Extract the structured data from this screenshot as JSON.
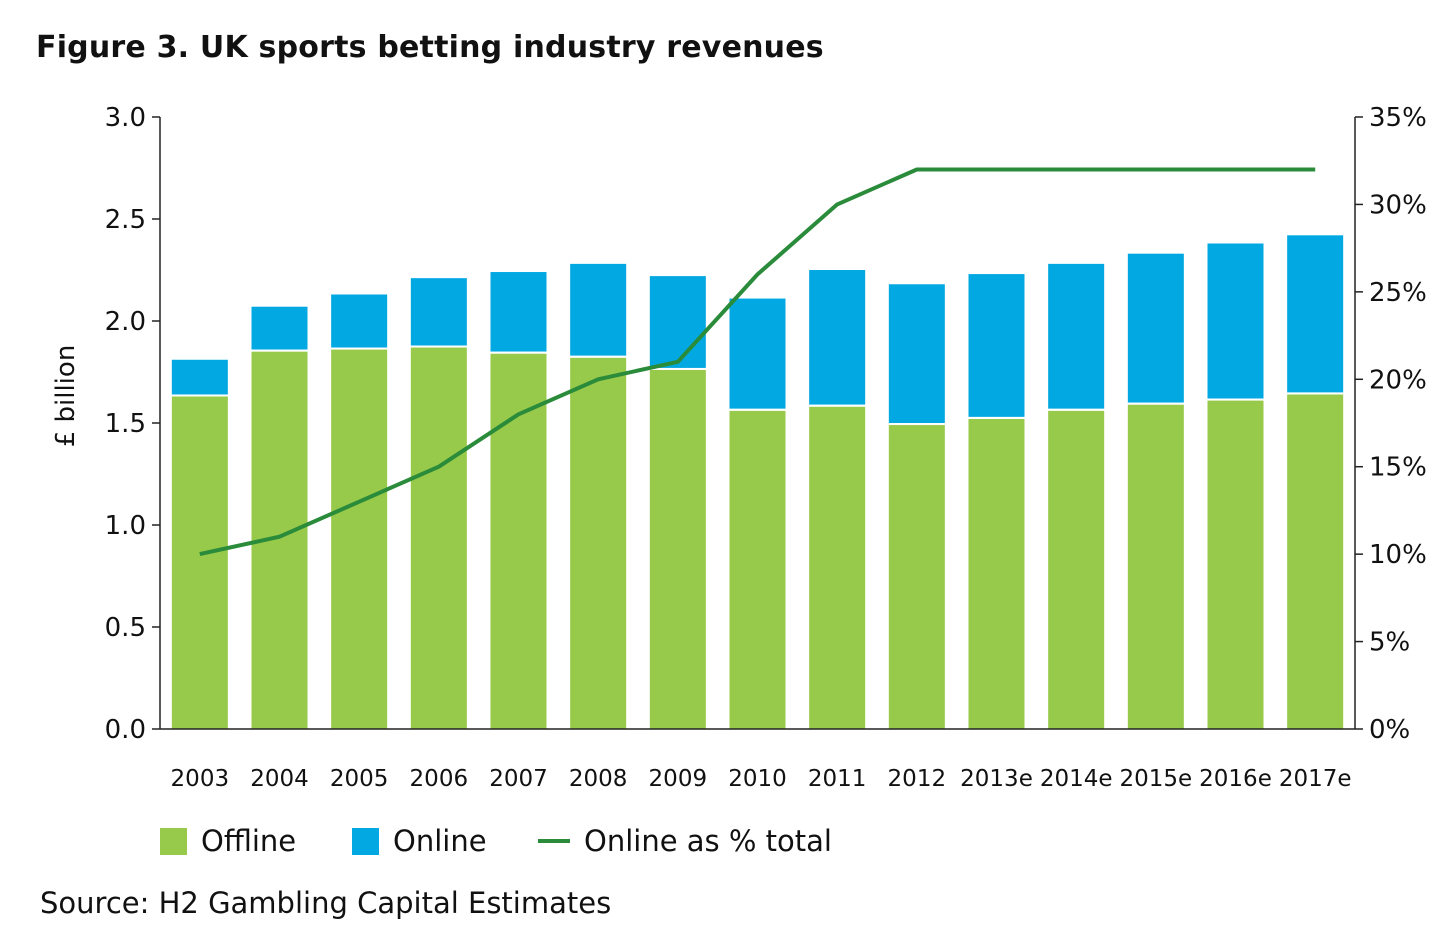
{
  "title": "Figure 3. UK sports betting industry revenues",
  "source": "Source: H2 Gambling Capital Estimates",
  "colors": {
    "offline": "#97C94A",
    "online": "#02A8E2",
    "line": "#2A8B3A",
    "axis": "#222222"
  },
  "legend": {
    "offline": "Offline",
    "online": "Online",
    "line": "Online as % total"
  },
  "chart_data": {
    "type": "bar",
    "stacked": true,
    "title": "Figure 3. UK sports betting industry revenues",
    "ylabel": "£ billion",
    "ylim": [
      0,
      3.0
    ],
    "y2lim": [
      0,
      35
    ],
    "yticks": [
      "0.0",
      "0.5",
      "1.0",
      "1.5",
      "2.0",
      "2.5",
      "3.0"
    ],
    "y2ticks": [
      "0%",
      "5%",
      "10%",
      "15%",
      "20%",
      "25%",
      "30%",
      "35%"
    ],
    "categories": [
      "2003",
      "2004",
      "2005",
      "2006",
      "2007",
      "2008",
      "2009",
      "2010",
      "2011",
      "2012",
      "2013e",
      "2014e",
      "2015e",
      "2016e",
      "2017e"
    ],
    "series": [
      {
        "name": "Offline",
        "axis": "left",
        "values": [
          1.63,
          1.85,
          1.86,
          1.87,
          1.84,
          1.82,
          1.76,
          1.56,
          1.58,
          1.49,
          1.52,
          1.56,
          1.59,
          1.61,
          1.64
        ]
      },
      {
        "name": "Online",
        "axis": "left",
        "values": [
          0.18,
          0.22,
          0.27,
          0.34,
          0.4,
          0.46,
          0.46,
          0.55,
          0.67,
          0.69,
          0.71,
          0.72,
          0.74,
          0.77,
          0.78
        ]
      },
      {
        "name": "Online as % total",
        "type": "line",
        "axis": "right",
        "values": [
          10,
          11,
          13,
          15,
          18,
          20,
          21,
          26,
          30,
          32,
          32,
          32,
          32,
          32,
          32
        ]
      }
    ],
    "grid": false,
    "legend_position": "bottom"
  }
}
